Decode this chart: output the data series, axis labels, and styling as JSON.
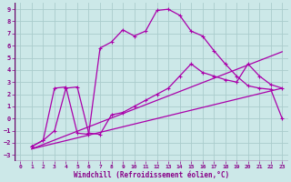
{
  "bg_color": "#cce8e8",
  "grid_color": "#aacccc",
  "line_color": "#aa00aa",
  "tick_color": "#880088",
  "xlabel": "Windchill (Refroidissement éolien,°C)",
  "xlim": [
    0,
    23
  ],
  "ylim": [
    -3,
    9
  ],
  "xticks": [
    0,
    1,
    2,
    3,
    4,
    5,
    6,
    7,
    8,
    9,
    10,
    11,
    12,
    13,
    14,
    15,
    16,
    17,
    18,
    19,
    20,
    21,
    22,
    23
  ],
  "yticks": [
    -3,
    -2,
    -1,
    0,
    1,
    2,
    3,
    4,
    5,
    6,
    7,
    8,
    9
  ],
  "line1_x": [
    1,
    2,
    3,
    4,
    5,
    6,
    7,
    8,
    9,
    10,
    11,
    12,
    13,
    14,
    15,
    16,
    17,
    18,
    19,
    20,
    21,
    22,
    23
  ],
  "line1_y": [
    -2.3,
    -1.8,
    2.5,
    2.6,
    -1.2,
    -1.3,
    5.8,
    6.3,
    7.3,
    6.8,
    7.2,
    8.9,
    9.0,
    8.5,
    7.2,
    6.8,
    5.6,
    4.5,
    3.5,
    2.7,
    2.5,
    2.4,
    0
  ],
  "line2_x": [
    1,
    23
  ],
  "line2_y": [
    -2.5,
    5.5
  ],
  "line3_x": [
    1,
    23
  ],
  "line3_y": [
    -2.5,
    2.5
  ],
  "line4_x": [
    1,
    2,
    3,
    4,
    5,
    6,
    7,
    8,
    9,
    10,
    11,
    12,
    13,
    14,
    15,
    16,
    17,
    18,
    19,
    20,
    21,
    22,
    23
  ],
  "line4_y": [
    -2.3,
    -1.8,
    -1.0,
    2.5,
    2.6,
    -1.2,
    -1.3,
    0.3,
    0.5,
    1.0,
    1.5,
    2.0,
    2.5,
    3.5,
    4.5,
    3.8,
    3.5,
    3.2,
    3.0,
    4.5,
    3.5,
    2.8,
    2.5
  ]
}
